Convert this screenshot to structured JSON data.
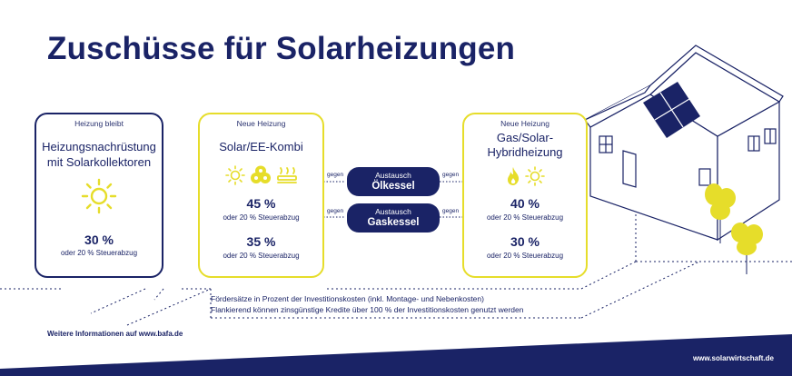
{
  "title": "Zuschüsse für Solarheizungen",
  "cards": {
    "heat": {
      "kicker": "Heizung bleibt",
      "heading_1": "Heizungsnachrüstung",
      "heading_2": "mit Solarkollektoren",
      "pct_1": "30 %",
      "sub_1": "oder 20 % Steuerabzug"
    },
    "solar": {
      "kicker": "Neue Heizung",
      "heading_1": "Solar/EE-Kombi",
      "pct_1": "45 %",
      "sub_1": "oder 20 % Steuerabzug",
      "pct_2": "35 %",
      "sub_2": "oder 20 % Steuerabzug"
    },
    "gas": {
      "kicker": "Neue Heizung",
      "heading_1": "Gas/Solar-",
      "heading_2": "Hybridheizung",
      "pct_1": "40 %",
      "sub_1": "oder 20 % Steuerabzug",
      "pct_2": "30 %",
      "sub_2": "oder 20 % Steuerabzug"
    }
  },
  "exchange": {
    "oil": {
      "line1": "Austausch",
      "line2": "Ölkessel"
    },
    "gas": {
      "line1": "Austausch",
      "line2": "Gaskessel"
    },
    "gegen": "gegen"
  },
  "footnote": {
    "line1": "Fördersätze in Prozent der Investitionskosten (inkl. Montage- und Nebenkosten)",
    "line2": "Flankierend können zinsgünstige Kredite über 100 % der Investitionskosten genutzt werden"
  },
  "info": "Weitere Informationen auf www.bafa.de",
  "site": "www.solarwirtschaft.de",
  "colors": {
    "navy": "#1a2366",
    "yellow": "#e6dd2a"
  }
}
